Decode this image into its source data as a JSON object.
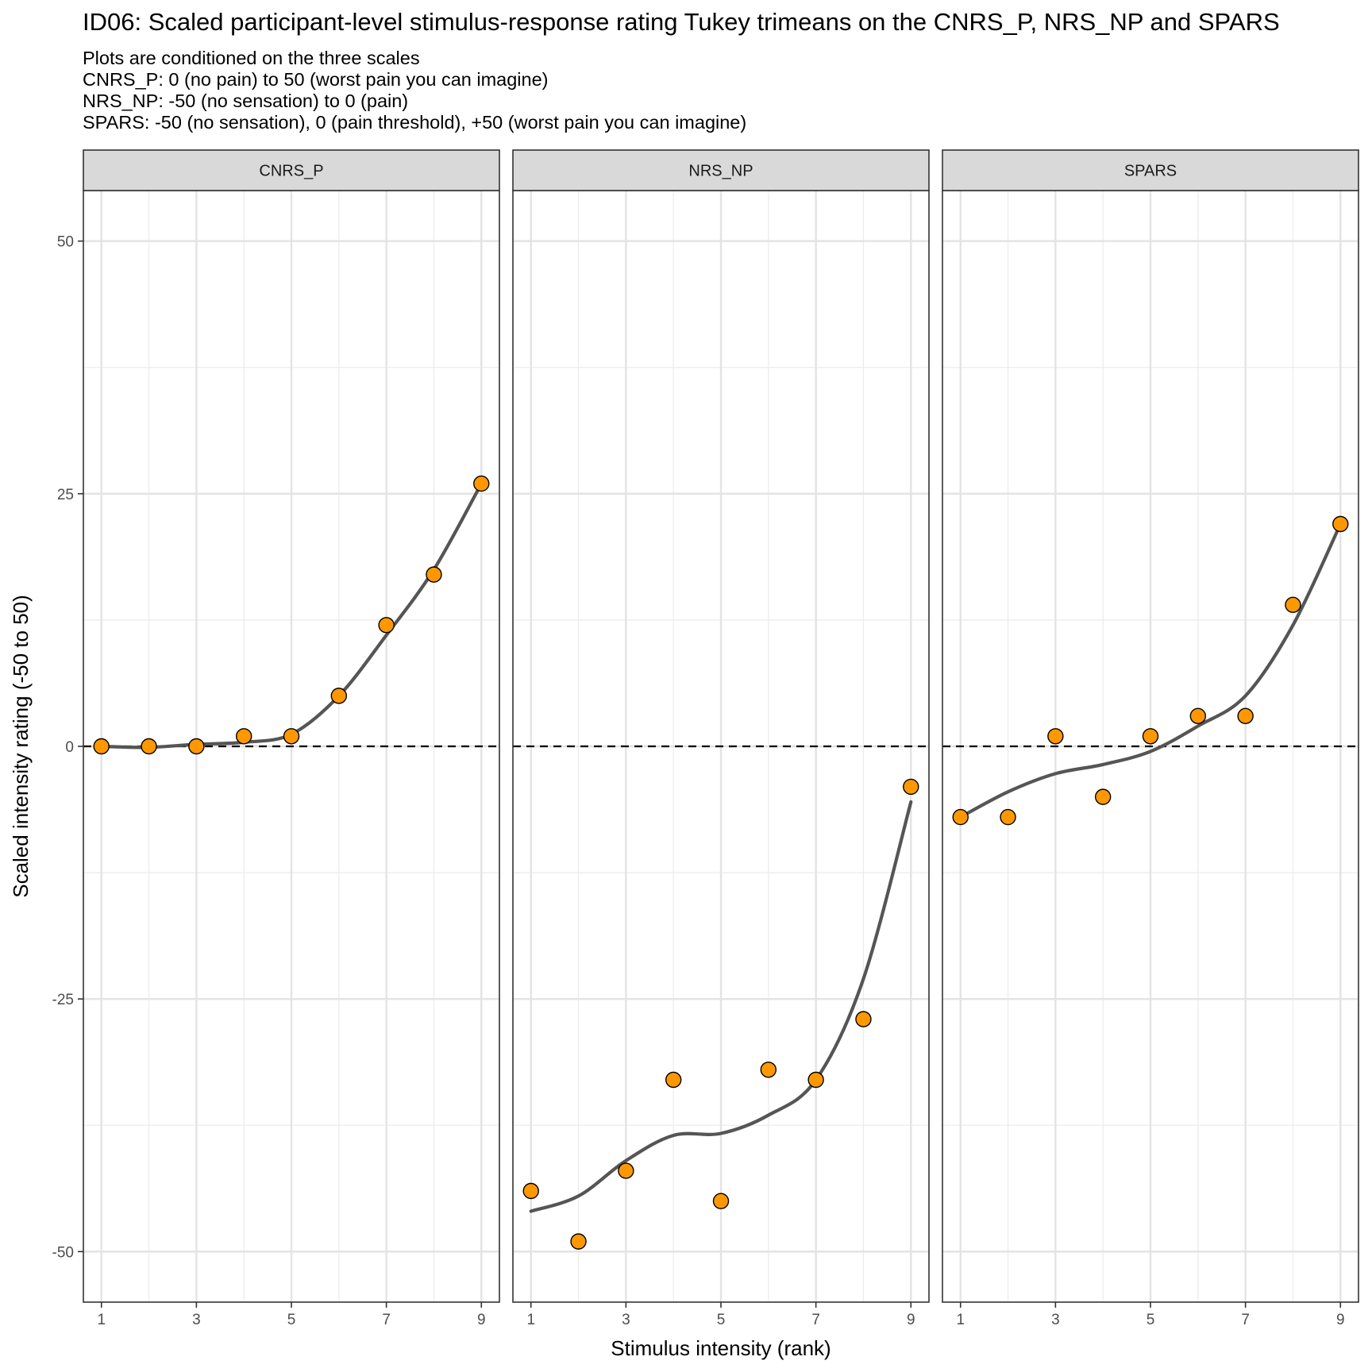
{
  "chart_data": {
    "type": "scatter",
    "title": "ID06: Scaled participant-level stimulus-response rating Tukey trimeans on the CNRS_P, NRS_NP and SPARS",
    "subtitle": [
      "Plots are conditioned on the three scales",
      "CNRS_P: 0 (no pain) to 50 (worst pain you can imagine)",
      "NRS_NP: -50 (no sensation) to 0 (pain)",
      "SPARS: -50 (no sensation), 0 (pain threshold), +50 (worst pain you can imagine)"
    ],
    "xlabel": "Stimulus intensity (rank)",
    "ylabel": "Scaled intensity rating (-50 to 50)",
    "xlim": [
      0.62,
      9.38
    ],
    "ylim": [
      -55,
      55
    ],
    "xticks": [
      "1",
      "3",
      "5",
      "7",
      "9"
    ],
    "yticks": [
      "-50",
      "-25",
      "0",
      "25",
      "50"
    ],
    "reference_line": {
      "y": 0,
      "style": "dashed"
    },
    "grid": true,
    "point_color": "#FF9800",
    "line_color": "#555555",
    "panels": [
      {
        "name": "CNRS_P",
        "x": [
          1,
          2,
          3,
          4,
          5,
          6,
          7,
          8,
          9
        ],
        "y": [
          0,
          0,
          0,
          1,
          1,
          5,
          12,
          17,
          26
        ],
        "smooth": [
          [
            1,
            0
          ],
          [
            2,
            -0.1
          ],
          [
            3,
            0.2
          ],
          [
            4,
            0.4
          ],
          [
            5,
            1.2
          ],
          [
            6,
            5
          ],
          [
            7,
            11
          ],
          [
            8,
            17.5
          ],
          [
            9,
            26
          ]
        ]
      },
      {
        "name": "NRS_NP",
        "x": [
          1,
          2,
          3,
          4,
          5,
          6,
          7,
          8,
          9
        ],
        "y": [
          -44,
          -49,
          -42,
          -33,
          -45,
          -32,
          -33,
          -27,
          -4
        ],
        "smooth": [
          [
            1,
            -46
          ],
          [
            2,
            -44.5
          ],
          [
            3,
            -41
          ],
          [
            4,
            -38.5
          ],
          [
            5,
            -38.3
          ],
          [
            6,
            -36.5
          ],
          [
            7,
            -33
          ],
          [
            8,
            -23
          ],
          [
            9,
            -5.5
          ]
        ]
      },
      {
        "name": "SPARS",
        "x": [
          1,
          2,
          3,
          4,
          5,
          6,
          7,
          8,
          9
        ],
        "y": [
          -7,
          -7,
          1,
          -5,
          1,
          3,
          3,
          14,
          22
        ],
        "smooth": [
          [
            1,
            -7
          ],
          [
            2,
            -4.5
          ],
          [
            3,
            -2.7
          ],
          [
            4,
            -1.8
          ],
          [
            5,
            -0.5
          ],
          [
            6,
            2
          ],
          [
            7,
            5
          ],
          [
            8,
            12
          ],
          [
            9,
            22
          ]
        ]
      }
    ]
  }
}
